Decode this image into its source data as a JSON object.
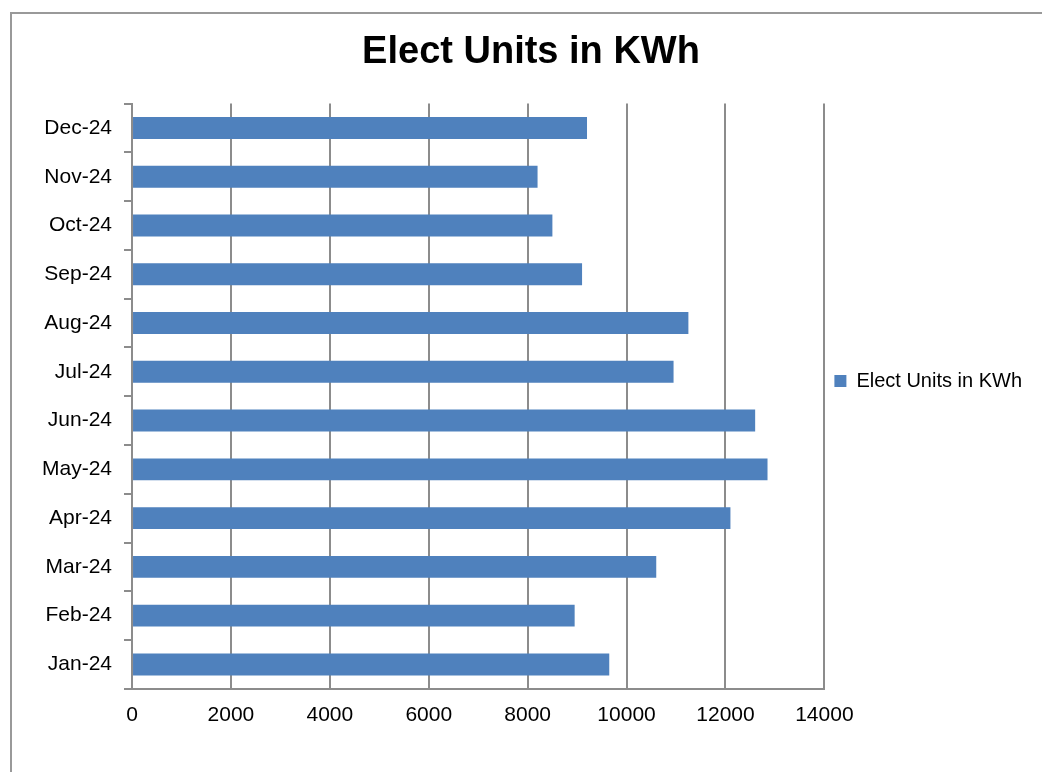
{
  "chart_data": {
    "type": "bar",
    "orientation": "horizontal",
    "title": "Elect Units in KWh",
    "categories": [
      "Dec-24",
      "Nov-24",
      "Oct-24",
      "Sep-24",
      "Aug-24",
      "Jul-24",
      "Jun-24",
      "May-24",
      "Apr-24",
      "Mar-24",
      "Feb-24",
      "Jan-24"
    ],
    "series": [
      {
        "name": "Elect Units in KWh",
        "color": "#4f81bd",
        "values": [
          9200,
          8200,
          8500,
          9100,
          11250,
          10950,
          12600,
          12850,
          12100,
          10600,
          8950,
          9650
        ]
      }
    ],
    "xlim": [
      0,
      14000
    ],
    "xticks": [
      0,
      2000,
      4000,
      6000,
      8000,
      10000,
      12000,
      14000
    ],
    "grid": "x",
    "legend": "right"
  }
}
